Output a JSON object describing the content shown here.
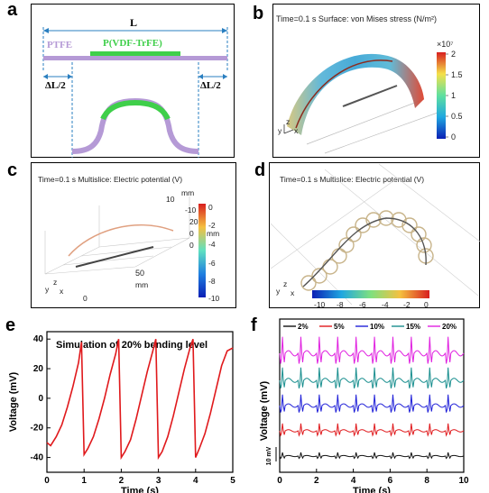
{
  "panels": {
    "a": {
      "label": "a",
      "length_label": "L",
      "ptfe_label": "PTFE",
      "pvdf_label": "P(VDF-TrFE)",
      "delta_left": "ΔL/2",
      "delta_right": "ΔL/2"
    },
    "b": {
      "label": "b",
      "title": "Time=0.1 s  Surface: von Mises stress (N/m²)",
      "colorbar_exp": "×10⁷",
      "colorbar_ticks": [
        "2",
        "1.5",
        "1",
        "0.5",
        "0"
      ],
      "axes": [
        "y",
        "z",
        "x"
      ]
    },
    "c": {
      "label": "c",
      "title": "Time=0.1 s  Multislice: Electric potential (V)",
      "axis_ticks": [
        "10",
        "-10",
        "20",
        "0",
        "0",
        "50",
        "0"
      ],
      "unit_mm": "mm",
      "unit_mm2": "mm",
      "unit_mm3": "mm",
      "unit_mm4": "mm",
      "colorbar_ticks": [
        "0",
        "-2",
        "-4",
        "-6",
        "-8",
        "-10"
      ],
      "axes": [
        "y",
        "z",
        "x"
      ]
    },
    "d": {
      "label": "d",
      "title": "Time=0.1 s  Multislice: Electric potential (V)",
      "colorbar_ticks": [
        "-10",
        "-8",
        "-6",
        "-4",
        "-2",
        "0"
      ],
      "axes": [
        "y",
        "z",
        "x"
      ]
    },
    "e": {
      "label": "e",
      "title": "Simulation of 20% bending level",
      "colors": {
        "trace": "#e0191c"
      }
    },
    "f": {
      "label": "f",
      "scale_bar": "10 mV",
      "legend": [
        {
          "name": "2%",
          "color": "#111111"
        },
        {
          "name": "5%",
          "color": "#e0191c"
        },
        {
          "name": "10%",
          "color": "#2020d8"
        },
        {
          "name": "15%",
          "color": "#1a8f8f"
        },
        {
          "name": "20%",
          "color": "#e020e0"
        }
      ]
    }
  },
  "chart_data": [
    {
      "type": "line",
      "panel": "e",
      "title": "Simulation of 20% bending level",
      "xlabel": "Time (s)",
      "ylabel": "Voltage (mV)",
      "xlim": [
        0,
        5
      ],
      "ylim": [
        -50,
        45
      ],
      "xticks": [
        "0",
        "1",
        "2",
        "3",
        "4",
        "5"
      ],
      "yticks": [
        "40",
        "20",
        "0",
        "-20",
        "-40"
      ],
      "series": [
        {
          "x": [
            0,
            0.1,
            0.25,
            0.4,
            0.55,
            0.7,
            0.85,
            0.93,
            1.0,
            1.1,
            1.25,
            1.4,
            1.55,
            1.7,
            1.85,
            1.93,
            2.0,
            2.1,
            2.25,
            2.4,
            2.55,
            2.7,
            2.85,
            2.93,
            3.0,
            3.1,
            3.25,
            3.4,
            3.55,
            3.7,
            3.85,
            3.93,
            4.0,
            4.1,
            4.25,
            4.4,
            4.55,
            4.7,
            4.85,
            5.0
          ],
          "y": [
            -30,
            -32,
            -26,
            -18,
            -6,
            8,
            24,
            38,
            -38,
            -34,
            -26,
            -14,
            0,
            16,
            30,
            40,
            -40,
            -36,
            -28,
            -14,
            2,
            18,
            32,
            40,
            -40,
            -36,
            -26,
            -12,
            4,
            20,
            34,
            40,
            -40,
            -34,
            -24,
            -10,
            6,
            22,
            32,
            34
          ]
        }
      ]
    },
    {
      "type": "line",
      "panel": "f",
      "xlabel": "Time (s)",
      "ylabel": "Voltage (mV)",
      "xlim": [
        0,
        10
      ],
      "xticks": [
        "0",
        "2",
        "4",
        "6",
        "8",
        "10"
      ],
      "series": [
        {
          "name": "2%",
          "peak_amplitude": 2
        },
        {
          "name": "5%",
          "peak_amplitude": 4
        },
        {
          "name": "10%",
          "peak_amplitude": 6
        },
        {
          "name": "15%",
          "peak_amplitude": 7
        },
        {
          "name": "20%",
          "peak_amplitude": 9
        }
      ]
    }
  ]
}
